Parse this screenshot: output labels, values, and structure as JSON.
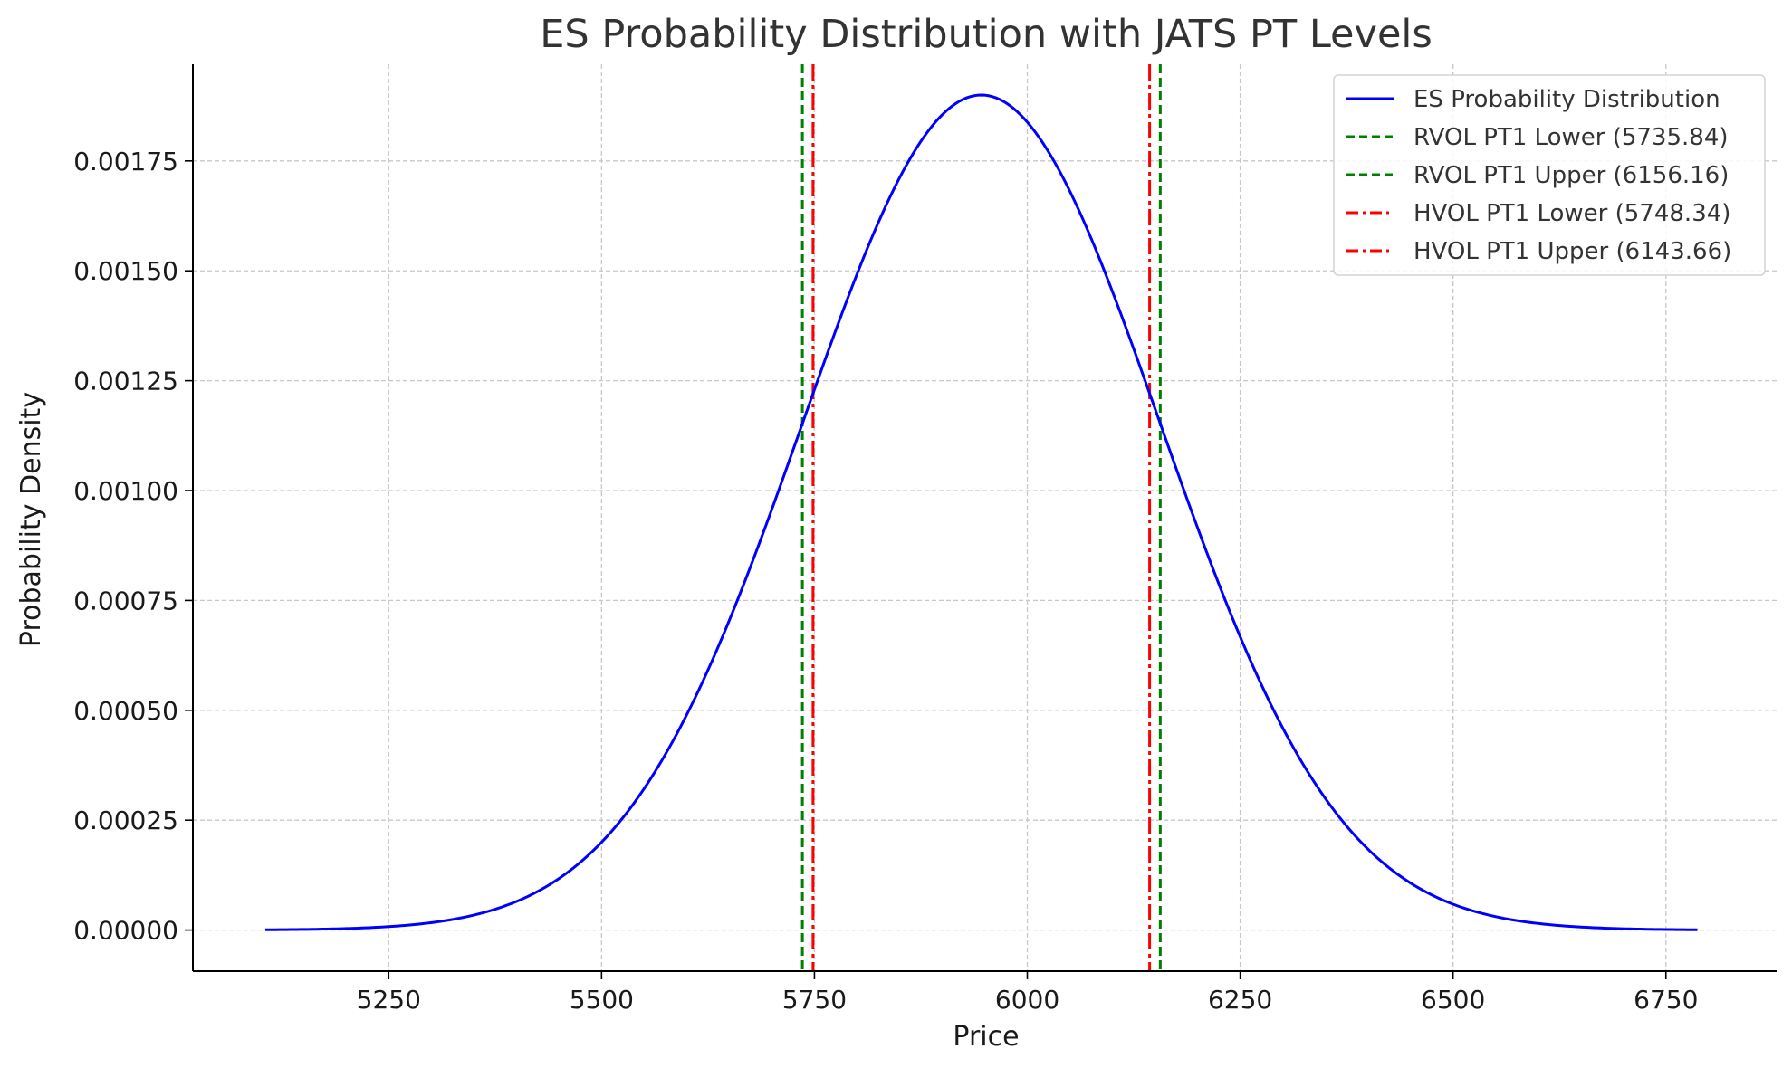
{
  "chart_data": {
    "type": "line",
    "title": "ES Probability Distribution with JATS PT Levels",
    "xlabel": "Price",
    "ylabel": "Probability Density",
    "xlim": [
      5020,
      6880
    ],
    "ylim": [
      -9.35e-05,
      0.00197
    ],
    "x_ticks": [
      5250,
      5500,
      5750,
      6000,
      6250,
      6500,
      6750
    ],
    "y_ticks": [
      0,
      0.00025,
      0.0005,
      0.00075,
      0.001,
      0.00125,
      0.0015,
      0.00175
    ],
    "x_tick_labels": [
      "5250",
      "5500",
      "5750",
      "6000",
      "6250",
      "6500",
      "6750"
    ],
    "y_tick_labels": [
      "0.00000",
      "0.00025",
      "0.00050",
      "0.00075",
      "0.00100",
      "0.00125",
      "0.00150",
      "0.00175"
    ],
    "grid": true,
    "legend_position": "top-right",
    "curve": {
      "name": "ES Probability Distribution",
      "color": "#0000ff",
      "distribution": "normal",
      "mean": 5946,
      "std": 210.16,
      "peak_density": 0.0019,
      "x_range": [
        5105,
        6787
      ],
      "x": [
        5105,
        5200,
        5300,
        5400,
        5500,
        5600,
        5650,
        5700,
        5735.84,
        5748.34,
        5800,
        5850,
        5900,
        5946,
        6000,
        6050,
        6100,
        6143.66,
        6156.16,
        6200,
        6250,
        6300,
        6400,
        6500,
        6600,
        6700,
        6787
      ],
      "y": [
        0.0,
        3e-05,
        7e-05,
        0.00018,
        0.0002,
        0.00049,
        0.00071,
        0.00095,
        0.00115,
        0.00122,
        0.0015,
        0.00171,
        0.00185,
        0.0019,
        0.00184,
        0.0017,
        0.00145,
        0.00122,
        0.00115,
        0.00091,
        0.00067,
        0.00044,
        0.00018,
        6e-05,
        1e-05,
        0.0,
        0.0
      ]
    },
    "lines": [
      {
        "name": "RVOL PT1 Lower (5735.84)",
        "x": 5735.84,
        "color": "#008000",
        "style": "dashed"
      },
      {
        "name": "RVOL PT1 Upper (6156.16)",
        "x": 6156.16,
        "color": "#008000",
        "style": "dashed"
      },
      {
        "name": "HVOL PT1 Lower (5748.34)",
        "x": 5748.34,
        "color": "#ff0000",
        "style": "dashdot"
      },
      {
        "name": "HVOL PT1 Upper (6143.66)",
        "x": 6143.66,
        "color": "#ff0000",
        "style": "dashdot"
      }
    ],
    "legend": [
      "ES Probability Distribution",
      "RVOL PT1 Lower (5735.84)",
      "RVOL PT1 Upper (6156.16)",
      "HVOL PT1 Lower (5748.34)",
      "HVOL PT1 Upper (6143.66)"
    ]
  }
}
